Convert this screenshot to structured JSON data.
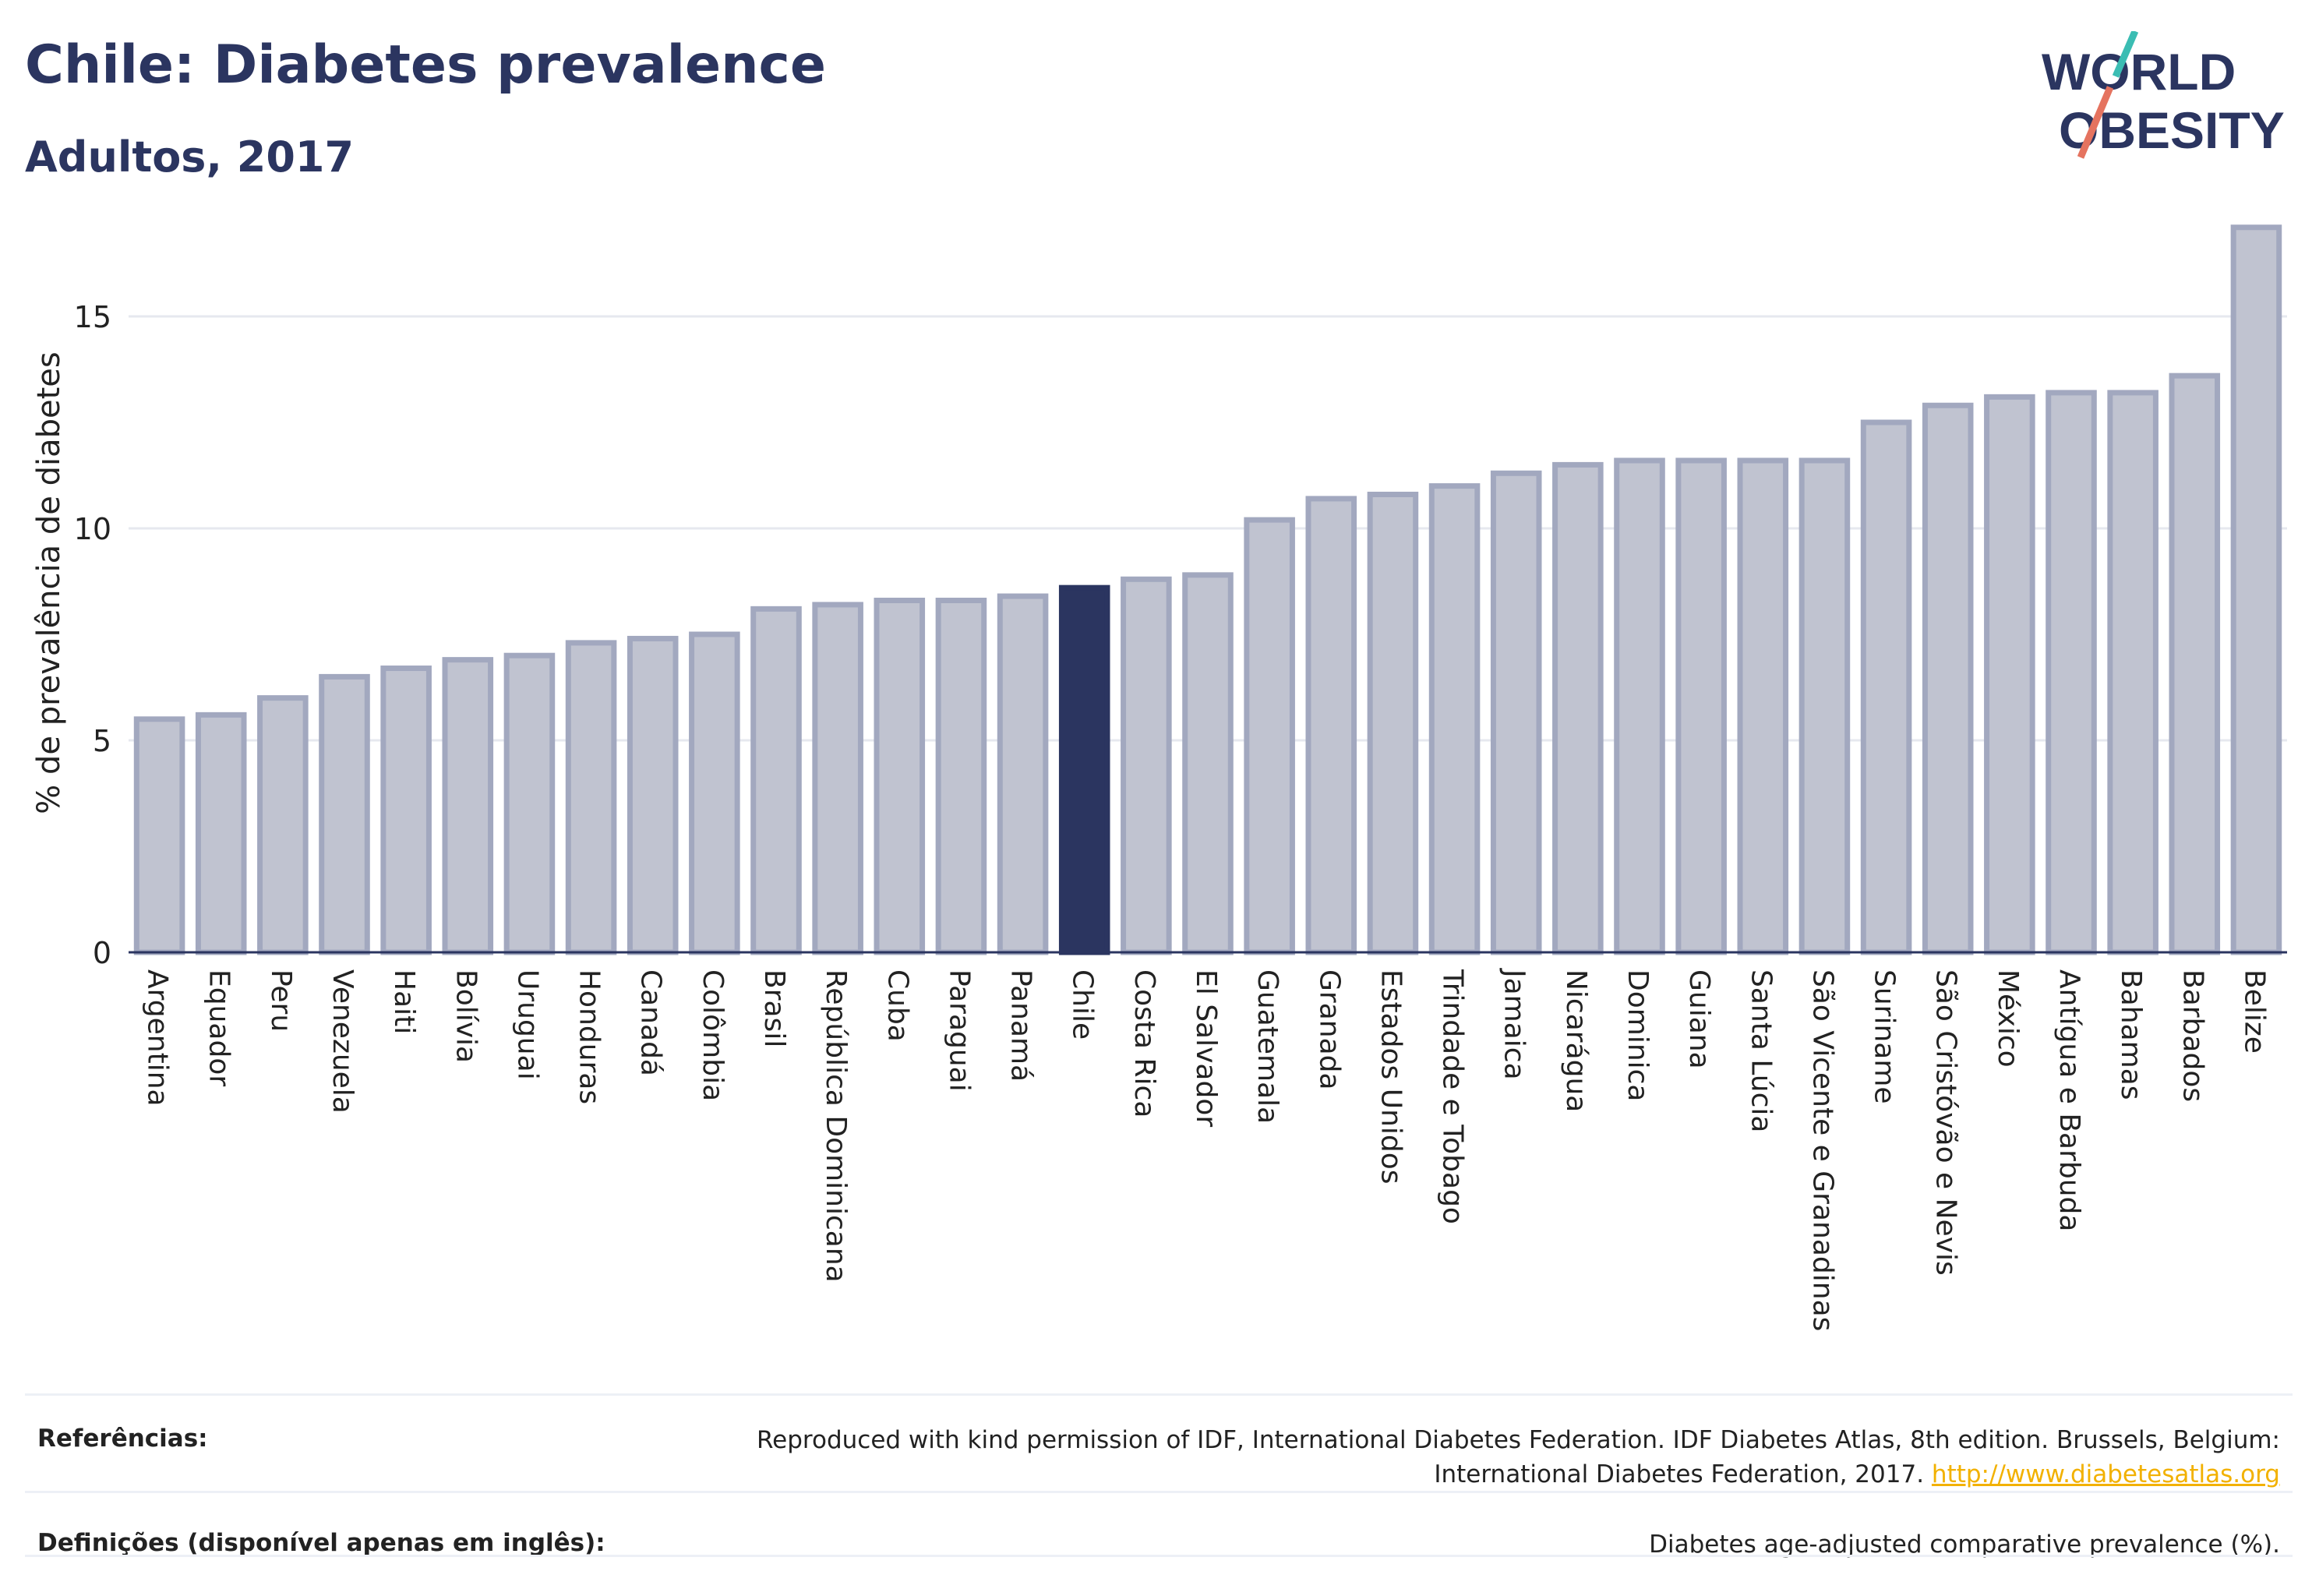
{
  "title": "Chile: Diabetes prevalence",
  "subtitle": "Adultos, 2017",
  "logo": {
    "line1": "WORLD",
    "line2": "OBESITY"
  },
  "colors": {
    "bar": "#c0c3d0",
    "bar_stroke": "#a2a8bf",
    "highlight": "#2b3560",
    "accent_teal": "#3bbdb3",
    "accent_red": "#e5735f",
    "link": "#f2b100"
  },
  "chart_data": {
    "type": "bar",
    "ylabel": "% de prevalência de diabetes",
    "ylim": [
      0,
      17.5
    ],
    "yticks": [
      0,
      5,
      10,
      15
    ],
    "grid": true,
    "highlight": "Chile",
    "categories": [
      "Argentina",
      "Equador",
      "Peru",
      "Venezuela",
      "Haiti",
      "Bolívia",
      "Uruguai",
      "Honduras",
      "Canadá",
      "Colômbia",
      "Brasil",
      "República Dominicana",
      "Cuba",
      "Paraguai",
      "Panamá",
      "Chile",
      "Costa Rica",
      "El Salvador",
      "Guatemala",
      "Granada",
      "Estados Unidos",
      "Trindade e Tobago",
      "Jamaica",
      "Nicarágua",
      "Dominica",
      "Guiana",
      "Santa Lúcia",
      "São Vicente e Granadinas",
      "Suriname",
      "São Cristóvão e Nevis",
      "México",
      "Antígua e Barbuda",
      "Bahamas",
      "Barbados",
      "Belize"
    ],
    "values": [
      5.5,
      5.6,
      6.0,
      6.5,
      6.7,
      6.9,
      7.0,
      7.3,
      7.4,
      7.5,
      8.1,
      8.2,
      8.3,
      8.3,
      8.4,
      8.6,
      8.8,
      8.9,
      10.2,
      10.7,
      10.8,
      11.0,
      11.3,
      11.5,
      11.6,
      11.6,
      11.6,
      11.6,
      12.5,
      12.9,
      13.1,
      13.2,
      13.2,
      13.6,
      17.1
    ]
  },
  "footer": {
    "references_label": "Referências:",
    "references_text_1": "Reproduced with kind permission of IDF, International Diabetes Federation. IDF Diabetes Atlas, 8th edition. Brussels, Belgium:",
    "references_text_2": "International Diabetes Federation, 2017.",
    "references_link": "http://www.diabetesatlas.org",
    "definitions_label": "Definições (disponível apenas em inglês):",
    "definitions_text": "Diabetes age-adjusted comparative prevalence (%)."
  }
}
